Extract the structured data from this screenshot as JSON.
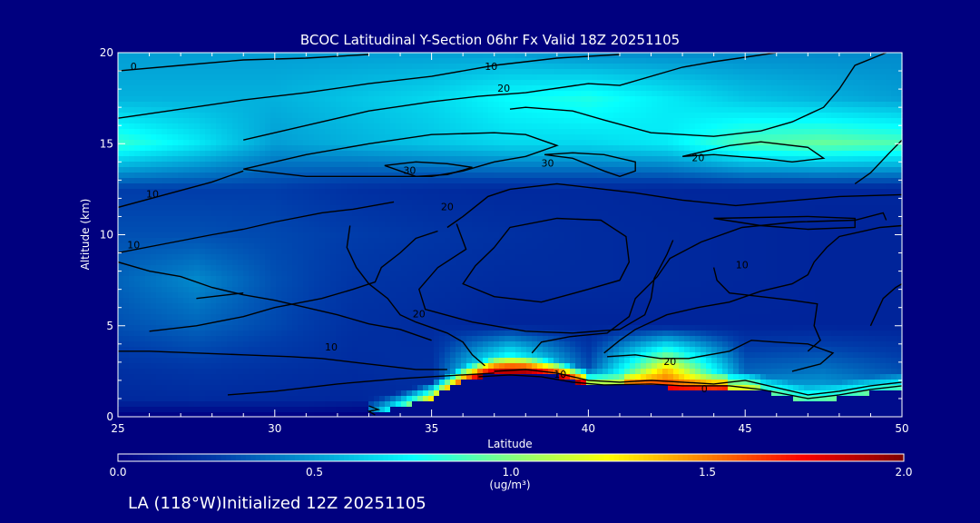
{
  "chart_data": {
    "type": "heatmap",
    "title": "BCOC Latitudinal Y-Section 06hr  Fx Valid 18Z 20251105",
    "xlabel": "Latitude",
    "ylabel": "Altitude (km)",
    "xlim": [
      25,
      50
    ],
    "ylim": [
      0,
      20
    ],
    "x_ticks": [
      25,
      30,
      35,
      40,
      45,
      50
    ],
    "y_ticks": [
      0,
      5,
      10,
      15,
      20
    ],
    "grid": false,
    "colorbar": {
      "min": 0.0,
      "max": 2.0,
      "tick_labels": [
        "0.0",
        "0.5",
        "1.0",
        "1.5",
        "2.0"
      ],
      "units": "(ug/m³)",
      "colormap": "jet"
    },
    "contour_labels": [
      {
        "text": "0",
        "lat": 25.5,
        "alt": 19.2
      },
      {
        "text": "10",
        "lat": 36.9,
        "alt": 19.2
      },
      {
        "text": "20",
        "lat": 37.3,
        "alt": 18.0
      },
      {
        "text": "30",
        "lat": 34.3,
        "alt": 13.5
      },
      {
        "text": "30",
        "lat": 38.7,
        "alt": 13.9
      },
      {
        "text": "20",
        "lat": 43.5,
        "alt": 14.2
      },
      {
        "text": "10",
        "lat": 26.1,
        "alt": 12.2
      },
      {
        "text": "20",
        "lat": 35.5,
        "alt": 11.5
      },
      {
        "text": "10",
        "lat": 25.5,
        "alt": 9.4
      },
      {
        "text": "10",
        "lat": 44.9,
        "alt": 8.3
      },
      {
        "text": "20",
        "lat": 34.6,
        "alt": 5.6
      },
      {
        "text": "10",
        "lat": 31.8,
        "alt": 3.8
      },
      {
        "text": "10",
        "lat": 39.1,
        "alt": 2.3
      },
      {
        "text": "20",
        "lat": 42.6,
        "alt": 3.0
      },
      {
        "text": "0",
        "lat": 43.7,
        "alt": 1.5
      }
    ],
    "field": {
      "lat": [
        25,
        27.5,
        30,
        32.5,
        35,
        37.5,
        40,
        42.5,
        45,
        47.5,
        50
      ],
      "alt": [
        0,
        2.5,
        5,
        7.5,
        10,
        12.5,
        15,
        17.5,
        20
      ],
      "values": [
        [
          0.15,
          0.15,
          0.15,
          0.15,
          0.18,
          0.9,
          0.7,
          0.8,
          0.85,
          0.7,
          0.6
        ],
        [
          0.2,
          0.22,
          0.2,
          0.18,
          0.2,
          1.1,
          0.3,
          1.4,
          0.35,
          0.4,
          0.3
        ],
        [
          0.3,
          0.35,
          0.28,
          0.2,
          0.18,
          0.15,
          0.15,
          0.15,
          0.15,
          0.15,
          0.15
        ],
        [
          0.35,
          0.45,
          0.3,
          0.22,
          0.2,
          0.18,
          0.18,
          0.17,
          0.16,
          0.15,
          0.15
        ],
        [
          0.3,
          0.3,
          0.28,
          0.25,
          0.22,
          0.2,
          0.18,
          0.17,
          0.16,
          0.15,
          0.15
        ],
        [
          0.25,
          0.25,
          0.25,
          0.2,
          0.18,
          0.17,
          0.17,
          0.16,
          0.16,
          0.16,
          0.16
        ],
        [
          0.85,
          0.7,
          0.5,
          0.55,
          0.6,
          0.65,
          0.65,
          0.7,
          0.9,
          0.95,
          0.9
        ],
        [
          0.55,
          0.55,
          0.55,
          0.6,
          0.65,
          0.75,
          0.8,
          0.7,
          0.6,
          0.55,
          0.5
        ],
        [
          0.5,
          0.5,
          0.5,
          0.5,
          0.5,
          0.5,
          0.45,
          0.45,
          0.45,
          0.45,
          0.45
        ]
      ]
    },
    "terrain": [
      [
        25,
        0
      ],
      [
        31,
        0
      ],
      [
        33,
        0.1
      ],
      [
        34,
        0.5
      ],
      [
        35,
        1.0
      ],
      [
        36,
        1.9
      ],
      [
        37,
        2.4
      ],
      [
        38,
        2.45
      ],
      [
        39,
        2.2
      ],
      [
        40,
        1.7
      ],
      [
        41,
        1.6
      ],
      [
        42,
        1.65
      ],
      [
        43,
        1.55
      ],
      [
        44,
        1.5
      ],
      [
        45,
        1.6
      ],
      [
        46,
        1.2
      ],
      [
        47,
        0.8
      ],
      [
        48,
        1.0
      ],
      [
        49,
        1.3
      ],
      [
        50,
        1.5
      ]
    ],
    "contours": [
      [
        [
          25,
          19.0
        ],
        [
          27,
          19.3
        ],
        [
          29,
          19.6
        ],
        [
          31,
          19.7
        ],
        [
          33,
          19.9
        ]
      ],
      [
        [
          25,
          16.4
        ],
        [
          27,
          16.9
        ],
        [
          29,
          17.4
        ],
        [
          31,
          17.8
        ],
        [
          33,
          18.3
        ],
        [
          35,
          18.7
        ],
        [
          37,
          19.3
        ],
        [
          39,
          19.7
        ],
        [
          41,
          19.9
        ]
      ],
      [
        [
          29,
          15.2
        ],
        [
          31,
          16.0
        ],
        [
          33,
          16.8
        ],
        [
          35,
          17.3
        ],
        [
          36.5,
          17.6
        ],
        [
          38,
          17.8
        ],
        [
          40,
          18.3
        ],
        [
          41,
          18.2
        ],
        [
          43,
          19.2
        ],
        [
          44,
          19.5
        ],
        [
          46,
          20
        ]
      ],
      [
        [
          29,
          13.6
        ],
        [
          31,
          14.4
        ],
        [
          33,
          15.0
        ],
        [
          35,
          15.5
        ],
        [
          37,
          15.6
        ],
        [
          38,
          15.5
        ],
        [
          39,
          14.9
        ],
        [
          38,
          14.3
        ],
        [
          37,
          14.0
        ],
        [
          36,
          13.5
        ],
        [
          35,
          13.2
        ],
        [
          33,
          13.2
        ],
        [
          31,
          13.2
        ],
        [
          29,
          13.6
        ]
      ],
      [
        [
          33.5,
          13.8
        ],
        [
          34.5,
          14.0
        ],
        [
          35.5,
          13.9
        ],
        [
          36.3,
          13.7
        ],
        [
          35.5,
          13.3
        ],
        [
          34.5,
          13.2
        ],
        [
          33.5,
          13.8
        ]
      ],
      [
        [
          37.5,
          16.9
        ],
        [
          38,
          17.0
        ],
        [
          39.5,
          16.8
        ],
        [
          40.5,
          16.3
        ],
        [
          42,
          15.6
        ],
        [
          44,
          15.4
        ],
        [
          45.5,
          15.7
        ],
        [
          46.5,
          16.2
        ],
        [
          47.5,
          17.0
        ],
        [
          48,
          18.0
        ],
        [
          48.5,
          19.3
        ],
        [
          49.5,
          20
        ]
      ],
      [
        [
          38.6,
          14.4
        ],
        [
          39.5,
          14.2
        ],
        [
          40.5,
          13.5
        ],
        [
          41,
          13.2
        ],
        [
          41.5,
          13.5
        ],
        [
          41.5,
          14.0
        ],
        [
          40.5,
          14.4
        ],
        [
          39.5,
          14.5
        ],
        [
          38.6,
          14.4
        ]
      ],
      [
        [
          43,
          14.3
        ],
        [
          44,
          14.4
        ],
        [
          45.5,
          14.2
        ],
        [
          46.5,
          14.0
        ],
        [
          47.5,
          14.2
        ],
        [
          47,
          14.8
        ],
        [
          45.5,
          15.1
        ],
        [
          44.5,
          14.9
        ],
        [
          43,
          14.3
        ]
      ],
      [
        [
          48.5,
          12.8
        ],
        [
          49,
          13.4
        ],
        [
          49.6,
          14.5
        ],
        [
          50,
          15.2
        ]
      ],
      [
        [
          25,
          11.5
        ],
        [
          26.5,
          12.2
        ],
        [
          28,
          12.9
        ],
        [
          29,
          13.5
        ]
      ],
      [
        [
          35.5,
          10.4
        ],
        [
          36,
          11.0
        ],
        [
          36.8,
          12.1
        ],
        [
          37.5,
          12.5
        ],
        [
          39,
          12.8
        ],
        [
          40,
          12.6
        ],
        [
          41.5,
          12.3
        ],
        [
          43,
          11.9
        ],
        [
          44.7,
          11.6
        ],
        [
          46,
          11.8
        ],
        [
          48,
          12.1
        ],
        [
          50,
          12.2
        ]
      ],
      [
        [
          25,
          9.0
        ],
        [
          26.5,
          9.5
        ],
        [
          28,
          10.0
        ],
        [
          29,
          10.3
        ],
        [
          30,
          10.7
        ],
        [
          31.5,
          11.2
        ],
        [
          32.5,
          11.4
        ],
        [
          33.8,
          11.8
        ]
      ],
      [
        [
          37,
          9.3
        ],
        [
          37.5,
          10.4
        ],
        [
          39,
          10.9
        ],
        [
          40.4,
          10.8
        ],
        [
          41.2,
          9.9
        ],
        [
          41.3,
          8.5
        ],
        [
          41,
          7.5
        ],
        [
          40,
          7.0
        ],
        [
          38.5,
          6.3
        ],
        [
          37,
          6.6
        ],
        [
          36,
          7.3
        ],
        [
          36.4,
          8.3
        ],
        [
          37,
          9.3
        ]
      ],
      [
        [
          35.8,
          10.6
        ],
        [
          36.1,
          9.2
        ],
        [
          35.2,
          8.2
        ],
        [
          34.6,
          7.0
        ],
        [
          34.8,
          5.9
        ],
        [
          36.3,
          5.2
        ],
        [
          38,
          4.7
        ],
        [
          39.5,
          4.6
        ],
        [
          41,
          4.8
        ],
        [
          41.8,
          5.6
        ],
        [
          42,
          6.5
        ],
        [
          42.1,
          7.6
        ],
        [
          42.5,
          8.9
        ],
        [
          42.7,
          9.7
        ]
      ],
      [
        [
          25,
          8.5
        ],
        [
          26,
          8.0
        ],
        [
          27,
          7.7
        ],
        [
          28,
          7.1
        ],
        [
          29,
          6.7
        ],
        [
          30,
          6.4
        ],
        [
          31,
          6.0
        ],
        [
          32,
          5.6
        ],
        [
          33,
          5.1
        ],
        [
          34,
          4.8
        ],
        [
          35,
          4.2
        ]
      ],
      [
        [
          32.4,
          10.5
        ],
        [
          32.3,
          9.3
        ],
        [
          32.6,
          8.2
        ],
        [
          33,
          7.3
        ],
        [
          33.6,
          6.5
        ],
        [
          34,
          5.6
        ],
        [
          34.5,
          5.2
        ],
        [
          35.5,
          4.6
        ],
        [
          36,
          4.1
        ],
        [
          36.3,
          3.4
        ],
        [
          36.7,
          2.8
        ]
      ],
      [
        [
          38.2,
          3.5
        ],
        [
          38.5,
          4.1
        ],
        [
          39.4,
          4.4
        ],
        [
          40.6,
          4.6
        ],
        [
          41.3,
          5.5
        ],
        [
          41.5,
          6.5
        ],
        [
          42.2,
          7.7
        ],
        [
          42.6,
          8.7
        ],
        [
          43.6,
          9.6
        ],
        [
          44.9,
          10.4
        ],
        [
          46.6,
          10.7
        ],
        [
          48.5,
          10.8
        ],
        [
          49.4,
          11.2
        ],
        [
          49.5,
          10.8
        ]
      ],
      [
        [
          44,
          10.9
        ],
        [
          45.5,
          10.5
        ],
        [
          47,
          10.3
        ],
        [
          48.5,
          10.4
        ],
        [
          48.5,
          10.9
        ],
        [
          47,
          11.0
        ],
        [
          44,
          10.9
        ]
      ],
      [
        [
          26,
          4.7
        ],
        [
          27.5,
          5.0
        ],
        [
          29,
          5.5
        ],
        [
          30,
          6.0
        ],
        [
          31.5,
          6.5
        ],
        [
          32.5,
          7.0
        ],
        [
          33.2,
          7.4
        ],
        [
          33.4,
          8.2
        ],
        [
          34,
          9.0
        ],
        [
          34.5,
          9.8
        ],
        [
          35.2,
          10.2
        ]
      ],
      [
        [
          25,
          3.6
        ],
        [
          26,
          3.6
        ],
        [
          27.5,
          3.5
        ],
        [
          29,
          3.4
        ],
        [
          30.5,
          3.3
        ],
        [
          31.5,
          3.2
        ],
        [
          32.5,
          3.0
        ],
        [
          33.5,
          2.8
        ],
        [
          34.5,
          2.6
        ],
        [
          35.5,
          2.6
        ]
      ],
      [
        [
          28.5,
          1.2
        ],
        [
          30,
          1.4
        ],
        [
          32,
          1.8
        ],
        [
          34,
          2.1
        ],
        [
          36,
          2.3
        ],
        [
          37,
          2.4
        ]
      ],
      [
        [
          47,
          3.6
        ],
        [
          47.4,
          4.2
        ],
        [
          47.2,
          5.0
        ],
        [
          47.3,
          6.2
        ],
        [
          46.5,
          6.4
        ],
        [
          45.5,
          6.6
        ],
        [
          44.5,
          6.8
        ],
        [
          44.1,
          7.5
        ],
        [
          44,
          8.2
        ]
      ],
      [
        [
          40.5,
          3.5
        ],
        [
          41,
          4.2
        ],
        [
          41.5,
          4.8
        ],
        [
          42.5,
          5.6
        ],
        [
          43.5,
          6.0
        ],
        [
          44.5,
          6.3
        ],
        [
          45.5,
          6.9
        ],
        [
          46.5,
          7.3
        ],
        [
          47,
          7.8
        ],
        [
          47.2,
          8.5
        ],
        [
          47.6,
          9.3
        ],
        [
          48,
          9.9
        ],
        [
          49.3,
          10.4
        ],
        [
          50,
          10.5
        ]
      ],
      [
        [
          40.6,
          3.3
        ],
        [
          41.5,
          3.4
        ],
        [
          42.3,
          3.2
        ],
        [
          43.2,
          3.2
        ],
        [
          44.5,
          3.6
        ],
        [
          45.2,
          4.2
        ],
        [
          46,
          4.1
        ],
        [
          47,
          4.0
        ],
        [
          47.8,
          3.5
        ],
        [
          47.4,
          2.9
        ],
        [
          46.5,
          2.5
        ]
      ],
      [
        [
          49,
          5.0
        ],
        [
          49.4,
          6.5
        ],
        [
          49.8,
          7.1
        ],
        [
          50,
          7.3
        ]
      ],
      [
        [
          27.5,
          6.5
        ],
        [
          28.5,
          6.7
        ],
        [
          29,
          6.8
        ]
      ],
      [
        [
          33,
          0.6
        ],
        [
          33.3,
          0.4
        ],
        [
          33,
          0.3
        ],
        [
          33.2,
          0.1
        ]
      ],
      [
        [
          37,
          2.5
        ],
        [
          38,
          2.6
        ],
        [
          39,
          2.4
        ],
        [
          40,
          2.0
        ],
        [
          41,
          1.9
        ],
        [
          42,
          2.0
        ],
        [
          43,
          1.9
        ],
        [
          44,
          1.8
        ],
        [
          45,
          2.0
        ],
        [
          46,
          1.6
        ],
        [
          47,
          1.2
        ],
        [
          48,
          1.4
        ],
        [
          49,
          1.7
        ],
        [
          50,
          1.9
        ]
      ],
      [
        [
          36.5,
          2.2
        ],
        [
          37.5,
          2.3
        ],
        [
          38.5,
          2.2
        ],
        [
          39.5,
          1.9
        ],
        [
          40.5,
          1.75
        ],
        [
          42,
          1.8
        ],
        [
          43,
          1.7
        ],
        [
          44.5,
          1.7
        ],
        [
          45.5,
          1.5
        ],
        [
          47,
          1.0
        ],
        [
          48,
          1.2
        ],
        [
          49,
          1.5
        ],
        [
          50,
          1.7
        ]
      ]
    ]
  },
  "footer_text": "LA (118°W)Initialized 12Z 20251105",
  "colors": {
    "background": "#00007f",
    "text": "#ffffff",
    "contour": "#000000"
  }
}
